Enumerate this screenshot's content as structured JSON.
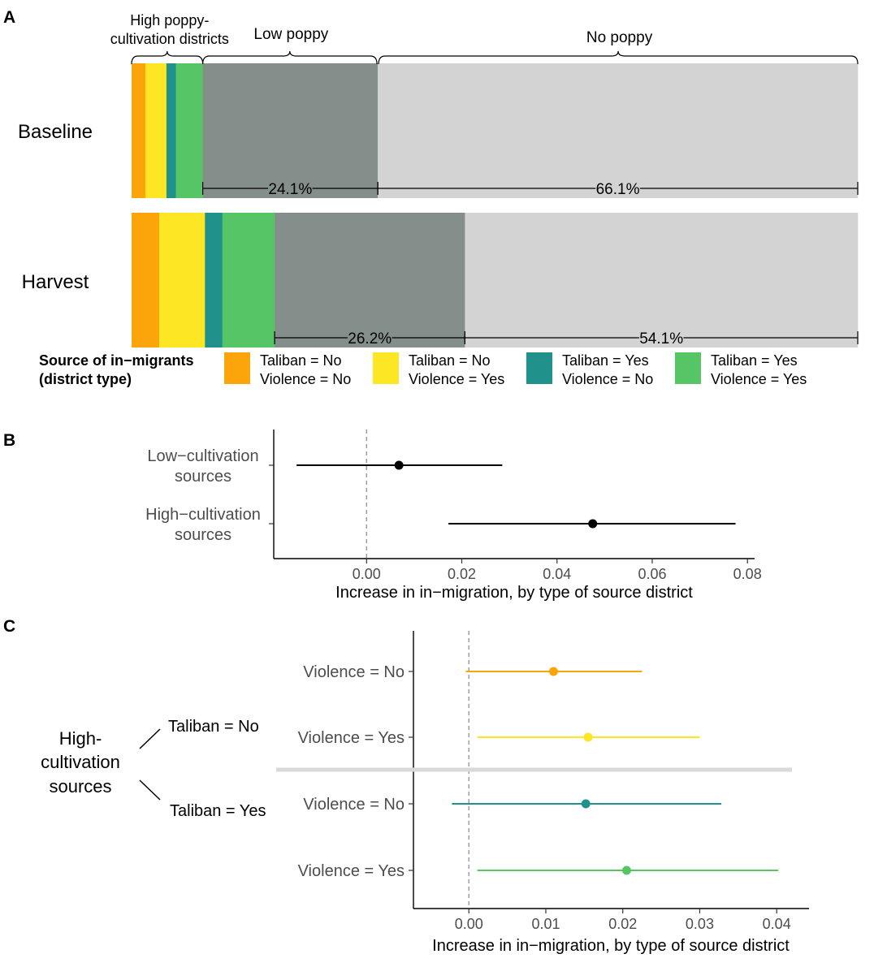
{
  "chart_data": [
    {
      "panel": "A",
      "type": "stacked-bar",
      "colors": {
        "taliban_no_violence_no": "#FCA50A",
        "taliban_no_violence_yes": "#FDE725",
        "taliban_yes_violence_no": "#21918C",
        "taliban_yes_violence_yes": "#56C566",
        "low_poppy": "#848E8B",
        "no_poppy": "#D3D3D3"
      },
      "group_labels": {
        "high": [
          "High poppy-",
          "cultivation districts"
        ],
        "low": "Low poppy",
        "none": "No poppy"
      },
      "rows": [
        {
          "label": "Baseline",
          "segments": [
            {
              "key": "taliban_no_violence_no",
              "value": 1.9
            },
            {
              "key": "taliban_no_violence_yes",
              "value": 2.9
            },
            {
              "key": "taliban_yes_violence_no",
              "value": 1.3
            },
            {
              "key": "taliban_yes_violence_yes",
              "value": 3.7
            },
            {
              "key": "low_poppy",
              "value": 24.1
            },
            {
              "key": "no_poppy",
              "value": 66.1
            }
          ],
          "annotations": {
            "low": "24.1%",
            "none": "66.1%"
          }
        },
        {
          "label": "Harvest",
          "segments": [
            {
              "key": "taliban_no_violence_no",
              "value": 3.8
            },
            {
              "key": "taliban_no_violence_yes",
              "value": 6.3
            },
            {
              "key": "taliban_yes_violence_no",
              "value": 2.4
            },
            {
              "key": "taliban_yes_violence_yes",
              "value": 7.2
            },
            {
              "key": "low_poppy",
              "value": 26.2
            },
            {
              "key": "no_poppy",
              "value": 54.1
            }
          ],
          "annotations": {
            "low": "26.2%",
            "none": "54.1%"
          }
        }
      ],
      "legend": {
        "title": [
          "Source of in−migrants",
          "(district type)"
        ],
        "items": [
          {
            "key": "taliban_no_violence_no",
            "lines": [
              "Taliban = No",
              "Violence = No"
            ]
          },
          {
            "key": "taliban_no_violence_yes",
            "lines": [
              "Taliban = No",
              "Violence = Yes"
            ]
          },
          {
            "key": "taliban_yes_violence_no",
            "lines": [
              "Taliban = Yes",
              "Violence = No"
            ]
          },
          {
            "key": "taliban_yes_violence_yes",
            "lines": [
              "Taliban = Yes",
              "Violence = Yes"
            ]
          }
        ]
      }
    },
    {
      "panel": "B",
      "type": "point-range",
      "xlabel": "Increase in in−migration, by type of source district",
      "xlim": [
        -0.0195,
        0.0815
      ],
      "xticks": [
        0.0,
        0.02,
        0.04,
        0.06,
        0.08
      ],
      "xtick_labels": [
        "0.00",
        "0.02",
        "0.04",
        "0.06",
        "0.08"
      ],
      "reference_line": 0,
      "points": [
        {
          "label": [
            "Low−cultivation",
            "sources"
          ],
          "estimate": 0.0068,
          "low": -0.0147,
          "high": 0.0285,
          "color": "#000000"
        },
        {
          "label": [
            "High−cultivation",
            "sources"
          ],
          "estimate": 0.0475,
          "low": 0.0172,
          "high": 0.0775,
          "color": "#000000"
        }
      ]
    },
    {
      "panel": "C",
      "type": "point-range",
      "xlabel": "Increase in in−migration, by type of source district",
      "xlim": [
        -0.0072,
        0.0442
      ],
      "xticks": [
        0.0,
        0.01,
        0.02,
        0.03,
        0.04
      ],
      "xtick_labels": [
        "0.00",
        "0.01",
        "0.02",
        "0.03",
        "0.04"
      ],
      "reference_line": 0,
      "group_label": [
        "High-",
        "cultivation",
        "sources"
      ],
      "subgroups": [
        "Taliban = No",
        "Taliban = Yes"
      ],
      "points": [
        {
          "label": "Violence = No",
          "estimate": 0.011,
          "low": -0.0004,
          "high": 0.0225,
          "color": "#FCA50A"
        },
        {
          "label": "Violence = Yes",
          "estimate": 0.0155,
          "low": 0.0011,
          "high": 0.03,
          "color": "#FDE725"
        },
        {
          "label": "Violence = No",
          "estimate": 0.0152,
          "low": -0.0022,
          "high": 0.0328,
          "color": "#21918C"
        },
        {
          "label": "Violence = Yes",
          "estimate": 0.0205,
          "low": 0.0011,
          "high": 0.0402,
          "color": "#56C566"
        }
      ]
    }
  ]
}
